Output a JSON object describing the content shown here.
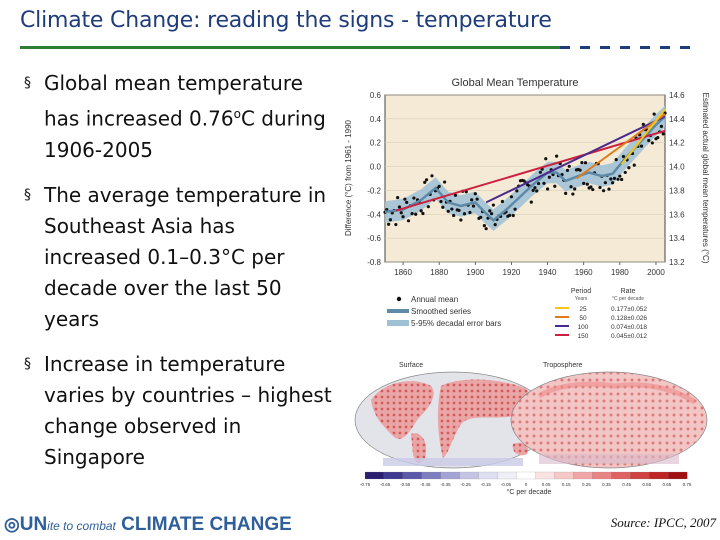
{
  "slide": {
    "title": "Climate Change: reading the signs - temperature",
    "bullets": [
      {
        "pre": "Global mean temperature has increased  0.76",
        "sup": "o",
        "post": "C during 1906-2005"
      },
      {
        "pre": "The average temperature in Southeast Asia has increased 0.1–0.3°C per decade over the last 50 years",
        "sup": "",
        "post": ""
      },
      {
        "pre": "Increase in temperature varies by countries – highest change observed in Singapore",
        "sup": "",
        "post": ""
      }
    ],
    "bullet_symbol": "§",
    "source": "Source: IPCC, 2007",
    "logo": {
      "un": "UN",
      "mid": "ite to combat",
      "end": "CLIMATE CHANGE"
    }
  },
  "chart_data": [
    {
      "type": "line",
      "title": "Global Mean Temperature",
      "ylabel": "Difference (°C) from 1961 - 1990",
      "y2label": "Estimated actual global mean temperatures (°C)",
      "xlim": [
        1850,
        2005
      ],
      "ylim": [
        -0.8,
        0.6
      ],
      "y2lim": [
        13.2,
        14.6
      ],
      "xticks": [
        "1860",
        "1880",
        "1900",
        "1920",
        "1940",
        "1960",
        "1980",
        "2000"
      ],
      "yticks": [
        "0.6",
        "0.4",
        "0.2",
        "0.0",
        "-0.2",
        "-0.4",
        "-0.6",
        "-0.8"
      ],
      "y2ticks": [
        "14.6",
        "14.4",
        "14.2",
        "14.0",
        "13.8",
        "13.6",
        "13.4",
        "13.2"
      ],
      "smoothed": {
        "x": [
          1850,
          1860,
          1870,
          1878,
          1885,
          1892,
          1900,
          1905,
          1910,
          1918,
          1925,
          1932,
          1940,
          1945,
          1950,
          1957,
          1963,
          1970,
          1976,
          1982,
          1988,
          1994,
          2000,
          2005
        ],
        "y": [
          -0.38,
          -0.36,
          -0.28,
          -0.18,
          -0.3,
          -0.33,
          -0.3,
          -0.38,
          -0.45,
          -0.35,
          -0.25,
          -0.15,
          -0.05,
          -0.05,
          -0.12,
          -0.08,
          -0.05,
          -0.08,
          -0.06,
          0.05,
          0.15,
          0.25,
          0.35,
          0.42
        ]
      },
      "legend": {
        "entries": [
          "Annual mean",
          "Smoothed series",
          "5-95% decadal error bars"
        ],
        "period_header": "Period",
        "period_units": "Years",
        "rate_header": "Rate",
        "rate_units": "°C per decade",
        "trends": [
          {
            "period": "25",
            "rate": "0.177±0.052",
            "color": "#f5c518"
          },
          {
            "period": "50",
            "rate": "0.128±0.026",
            "color": "#e07b1a"
          },
          {
            "period": "100",
            "rate": "0.074±0.018",
            "color": "#4b2a8c"
          },
          {
            "period": "150",
            "rate": "0.045±0.012",
            "color": "#cc2040"
          }
        ]
      }
    },
    {
      "type": "heatmap",
      "panels": [
        "Surface",
        "Troposphere"
      ],
      "colorbar_ticks": [
        "-0.75",
        "-0.65",
        "-0.55",
        "-0.45",
        "-0.35",
        "-0.25",
        "-0.15",
        "-0.05",
        "0",
        "0.05",
        "0.15",
        "0.25",
        "0.35",
        "0.45",
        "0.55",
        "0.65",
        "0.75"
      ],
      "colorbar_label": "°C per decade"
    }
  ]
}
